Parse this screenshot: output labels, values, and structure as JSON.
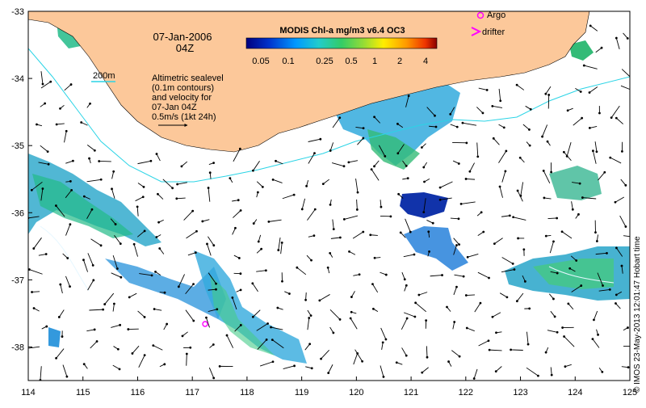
{
  "map": {
    "lon_ticks": [
      "114",
      "115",
      "116",
      "117",
      "118",
      "119",
      "120",
      "121",
      "122",
      "123",
      "124",
      "125"
    ],
    "lat_ticks": [
      "-33",
      "-34",
      "-35",
      "-36",
      "-37",
      "-38"
    ],
    "lon_range": [
      114,
      125
    ],
    "lat_range": [
      -38.5,
      -33
    ],
    "land_color": "#fcc89a",
    "contour_color": "#2ad4e6"
  },
  "annotations": {
    "date": "07-Jan-2006",
    "hour": "04Z",
    "depth_label": "200m",
    "altimetry_line1": "Altimetric sealevel",
    "altimetry_line2": "(0.1m contours)",
    "altimetry_line3": "and velocity for",
    "altimetry_line4": "07-Jan 04Z",
    "altimetry_line5": "0.5m/s (1kt 24h)"
  },
  "colorbar": {
    "title": "MODIS Chl-a mg/m3 v6.4 OC3",
    "ticks": [
      "0.05",
      "0.1",
      "0.25",
      "0.5",
      "1",
      "2",
      "4"
    ],
    "colors": [
      "#00007f",
      "#0033cc",
      "#0099ff",
      "#22cccc",
      "#33cc66",
      "#99dd33",
      "#ffee00",
      "#ff9900",
      "#ee3300",
      "#880000"
    ]
  },
  "legend": {
    "argo_label": "Argo",
    "drifter_label": "drifter",
    "symbol_color": "#ff00ff"
  },
  "credit": "© IMOS 23-May-2013 12:01:47 Hobart time"
}
